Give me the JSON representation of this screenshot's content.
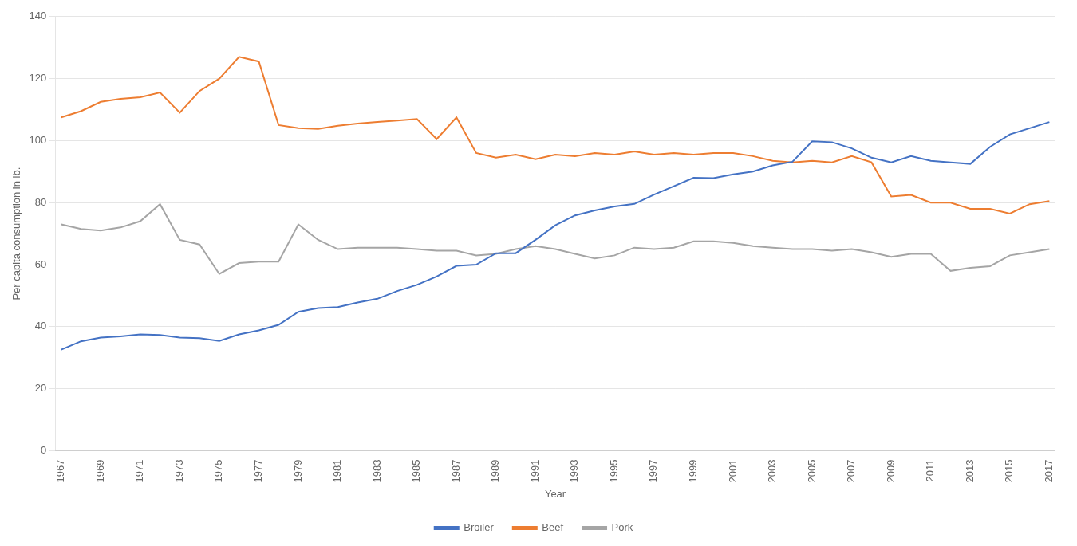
{
  "chart_data": {
    "type": "line",
    "xlabel": "Year",
    "ylabel": "Per capita consumption in lb.",
    "x": [
      1967,
      1968,
      1969,
      1970,
      1971,
      1972,
      1973,
      1974,
      1975,
      1976,
      1977,
      1978,
      1979,
      1980,
      1981,
      1982,
      1983,
      1984,
      1985,
      1986,
      1987,
      1988,
      1989,
      1990,
      1991,
      1992,
      1993,
      1994,
      1995,
      1996,
      1997,
      1998,
      1999,
      2000,
      2001,
      2002,
      2003,
      2004,
      2005,
      2006,
      2007,
      2008,
      2009,
      2010,
      2011,
      2012,
      2013,
      2014,
      2015,
      2016,
      2017
    ],
    "series": [
      {
        "name": "Broiler",
        "color": "#4472C4",
        "values": [
          32.6,
          35.3,
          36.5,
          36.9,
          37.5,
          37.3,
          36.5,
          36.3,
          35.4,
          37.5,
          38.8,
          40.6,
          44.8,
          46.0,
          46.3,
          47.8,
          49.0,
          51.5,
          53.5,
          56.2,
          59.6,
          60.0,
          63.7,
          63.7,
          68.0,
          72.7,
          75.9,
          77.5,
          78.8,
          79.6,
          82.6,
          85.3,
          88.0,
          87.9,
          89.1,
          90.0,
          92.0,
          93.2,
          99.8,
          99.5,
          97.5,
          94.5,
          93.0,
          95.0,
          93.5,
          93.0,
          92.5,
          98.0,
          102.0,
          104.0,
          106.0
        ]
      },
      {
        "name": "Beef",
        "color": "#ED7D31",
        "values": [
          107.5,
          109.5,
          112.5,
          113.5,
          114.0,
          115.5,
          109.0,
          116.0,
          120.0,
          127.0,
          125.5,
          105.0,
          104.0,
          103.8,
          104.8,
          105.5,
          106.0,
          106.5,
          107.0,
          100.5,
          107.5,
          96.0,
          94.5,
          95.5,
          94.0,
          95.5,
          95.0,
          96.0,
          95.5,
          96.5,
          95.5,
          96.0,
          95.5,
          96.0,
          96.0,
          95.0,
          93.5,
          93.0,
          93.5,
          93.0,
          95.0,
          93.0,
          82.0,
          82.5,
          80.0,
          80.0,
          78.0,
          78.0,
          76.5,
          79.5,
          80.5
        ]
      },
      {
        "name": "Pork",
        "color": "#A5A5A5",
        "values": [
          73.0,
          71.5,
          71.0,
          72.0,
          74.0,
          79.5,
          68.0,
          66.5,
          57.0,
          60.5,
          61.0,
          61.0,
          73.0,
          68.0,
          65.0,
          65.5,
          65.5,
          65.5,
          65.0,
          64.5,
          64.5,
          63.0,
          63.5,
          65.0,
          66.0,
          65.0,
          63.5,
          62.0,
          63.0,
          65.5,
          65.0,
          65.5,
          67.5,
          67.5,
          67.0,
          66.0,
          65.5,
          65.0,
          65.0,
          64.5,
          65.0,
          64.0,
          62.5,
          63.5,
          63.5,
          58.0,
          59.0,
          59.5,
          63.0,
          64.0,
          65.0
        ]
      }
    ],
    "xlim": [
      1966.7,
      2017.3
    ],
    "xticks": [
      1967,
      1969,
      1971,
      1973,
      1975,
      1977,
      1979,
      1981,
      1983,
      1985,
      1987,
      1989,
      1991,
      1993,
      1995,
      1997,
      1999,
      2001,
      2003,
      2005,
      2007,
      2009,
      2011,
      2013,
      2015,
      2017
    ],
    "ylim": [
      0,
      140
    ],
    "yticks": [
      0,
      20,
      40,
      60,
      80,
      100,
      120,
      140
    ],
    "grid": "y",
    "legend": "bottom"
  }
}
